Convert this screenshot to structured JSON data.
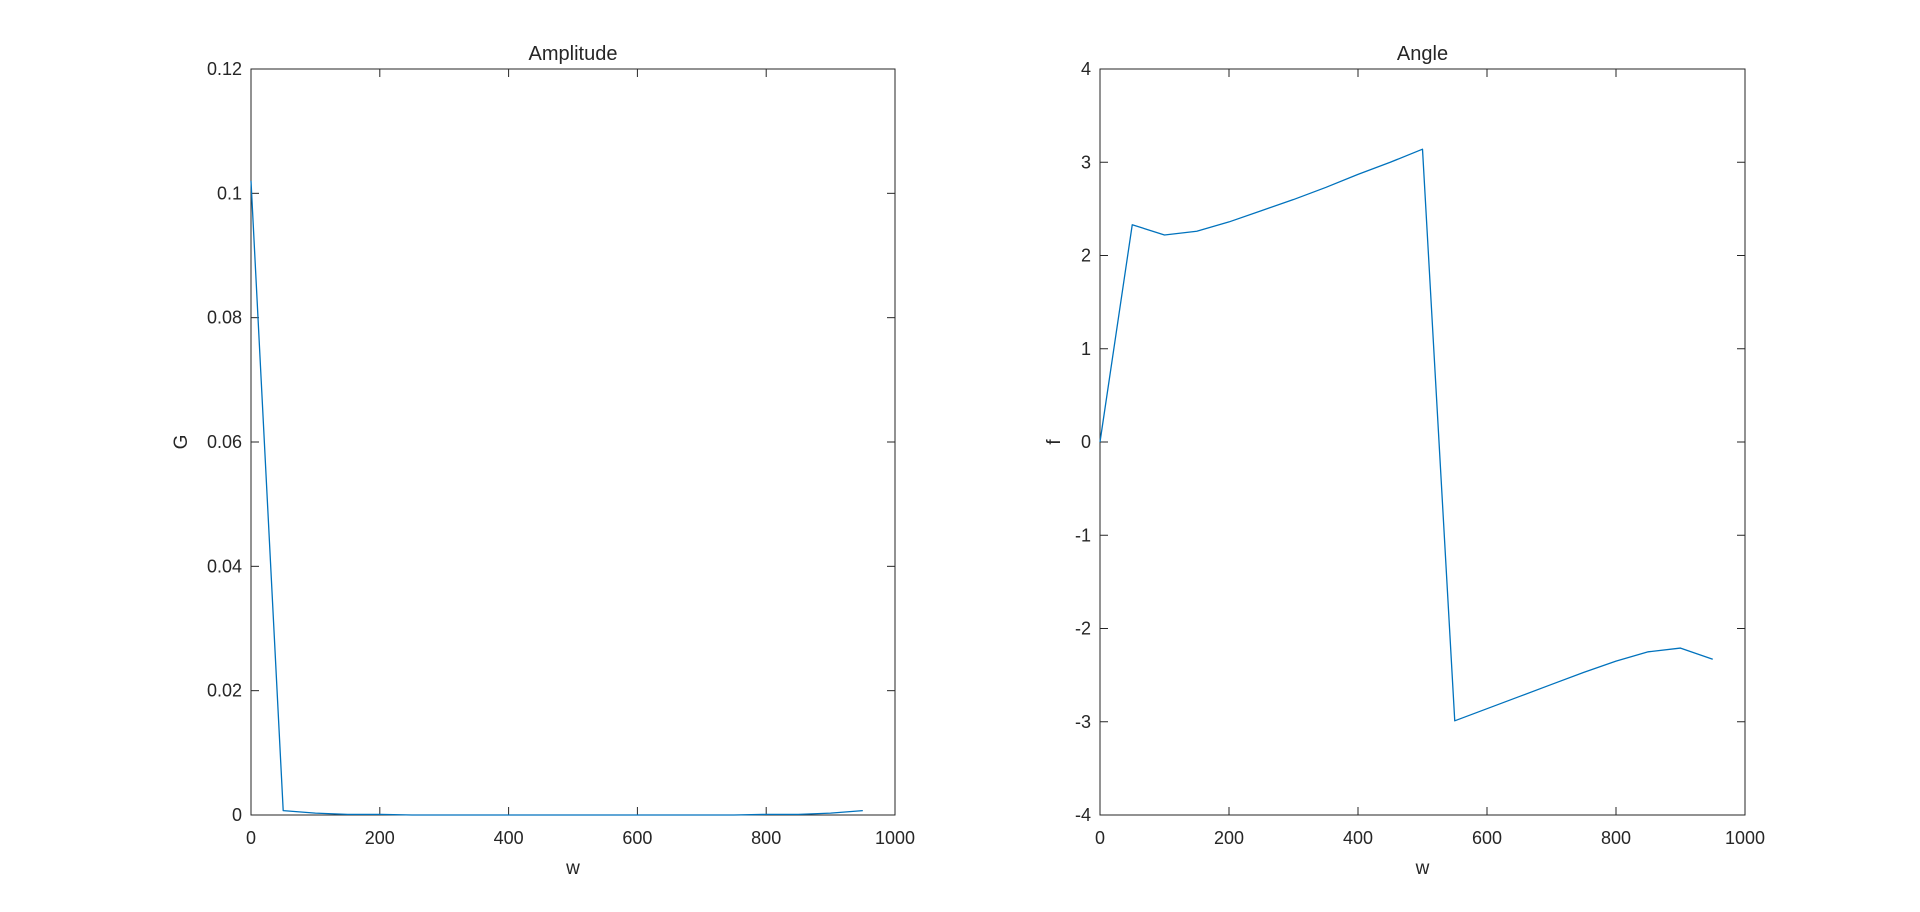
{
  "chart_data": [
    {
      "type": "line",
      "title": "Amplitude",
      "xlabel": "w",
      "ylabel": "G",
      "xlim": [
        0,
        1000
      ],
      "ylim": [
        0,
        0.12
      ],
      "xticks": [
        0,
        200,
        400,
        600,
        800,
        1000
      ],
      "yticks": [
        0,
        0.02,
        0.04,
        0.06,
        0.08,
        0.1,
        0.12
      ],
      "xtick_labels": [
        "0",
        "200",
        "400",
        "600",
        "800",
        "1000"
      ],
      "ytick_labels": [
        "0",
        "0.02",
        "0.04",
        "0.06",
        "0.08",
        "0.1",
        "0.12"
      ],
      "grid": false,
      "series_color": "#0072BD",
      "series": [
        {
          "x": [
            0,
            50,
            100,
            150,
            200,
            250,
            300,
            350,
            400,
            450,
            500,
            550,
            600,
            650,
            700,
            750,
            800,
            850,
            900,
            950
          ],
          "values": [
            0.102,
            0.0007,
            0.0003,
            0.0001,
            0.0001,
            0.0,
            0.0,
            0.0,
            0.0,
            0.0,
            0.0,
            0.0,
            0.0,
            0.0,
            0.0,
            0.0,
            0.0001,
            0.0001,
            0.0003,
            0.0007
          ]
        }
      ]
    },
    {
      "type": "line",
      "title": "Angle",
      "xlabel": "w",
      "ylabel": "f",
      "xlim": [
        0,
        1000
      ],
      "ylim": [
        -4,
        4
      ],
      "xticks": [
        0,
        200,
        400,
        600,
        800,
        1000
      ],
      "yticks": [
        -4,
        -3,
        -2,
        -1,
        0,
        1,
        2,
        3,
        4
      ],
      "xtick_labels": [
        "0",
        "200",
        "400",
        "600",
        "800",
        "1000"
      ],
      "ytick_labels": [
        "-4",
        "-3",
        "-2",
        "-1",
        "0",
        "1",
        "2",
        "3",
        "4"
      ],
      "grid": false,
      "series_color": "#0072BD",
      "series": [
        {
          "x": [
            0,
            50,
            100,
            150,
            200,
            250,
            300,
            350,
            400,
            450,
            500,
            550,
            600,
            650,
            700,
            750,
            800,
            850,
            900,
            950
          ],
          "values": [
            0.0,
            2.33,
            2.22,
            2.26,
            2.36,
            2.48,
            2.6,
            2.73,
            2.87,
            3.0,
            3.14,
            -2.99,
            -2.86,
            -2.73,
            -2.6,
            -2.47,
            -2.35,
            -2.25,
            -2.21,
            -2.33
          ]
        }
      ]
    }
  ]
}
